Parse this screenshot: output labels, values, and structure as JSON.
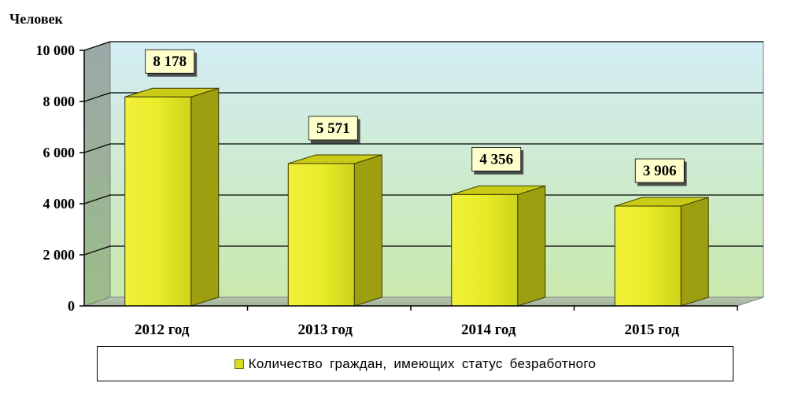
{
  "chart_data": {
    "type": "bar",
    "unit_label": "Человек",
    "categories": [
      "2012 год",
      "2013 год",
      "2014 год",
      "2015 год"
    ],
    "series": [
      {
        "name": "Количество граждан, имеющих статус безработного",
        "values": [
          8178,
          5571,
          4356,
          3906
        ]
      }
    ],
    "data_labels": [
      "8 178",
      "5 571",
      "4 356",
      "3 906"
    ],
    "ylim": [
      0,
      10000
    ],
    "yticks": [
      0,
      2000,
      4000,
      6000,
      8000,
      10000
    ],
    "ytick_labels": [
      "0",
      "2 000",
      "4 000",
      "6 000",
      "8 000",
      "10 000"
    ],
    "grid": true,
    "legend_position": "bottom",
    "colors": {
      "bar_front": "#e6ea2a",
      "bar_side": "#9a9b0c",
      "bar_top": "#c8ca16",
      "wall_top": "#cfe9f0",
      "wall_bottom": "#c6e8b0",
      "label_bg": "#ffffcc"
    }
  },
  "legend": {
    "label": "Количество граждан, имеющих статус безработного"
  }
}
